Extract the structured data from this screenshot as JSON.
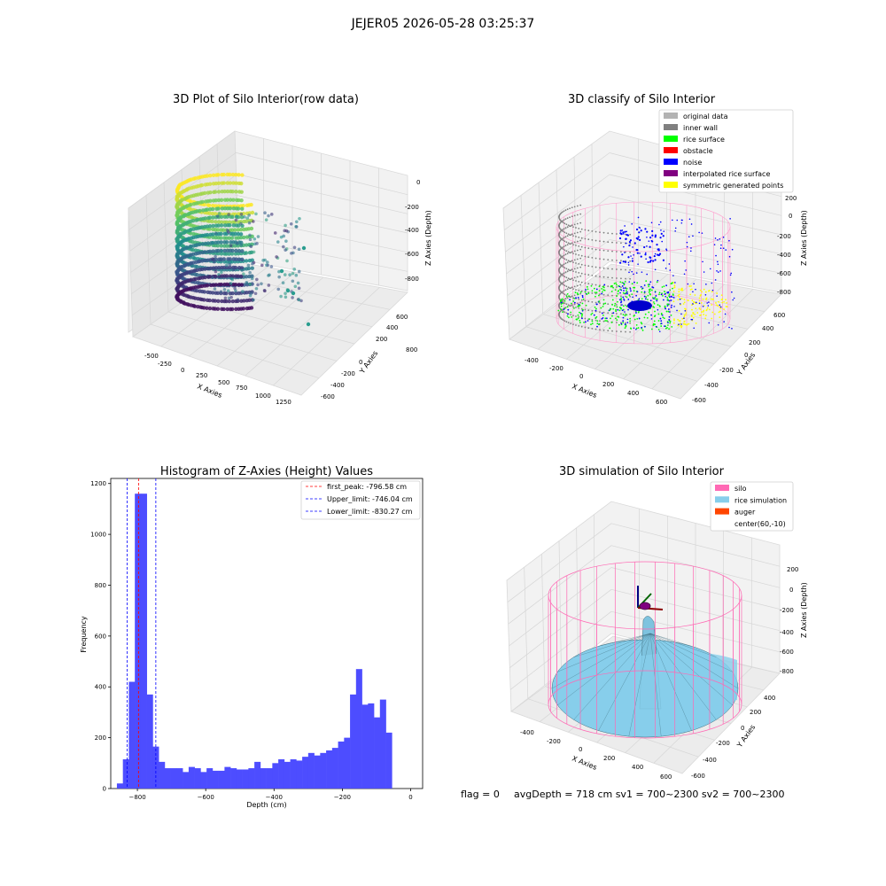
{
  "suptitle": "JEJER05 2026-05-28 03:25:37",
  "footer": {
    "flag": "flag = 0",
    "avgdepth": "avgDepth = 718 cm  sv1 = 700~2300  sv2 = 700~2300"
  },
  "chart_data": [
    {
      "type": "scatter",
      "projection": "3d",
      "title": "3D Plot of Silo Interior(row data)",
      "xlabel": "X Axies",
      "ylabel": "Y Axies",
      "zlabel": "Z Axies (Depth)",
      "x_ticks": [
        -500,
        -250,
        0,
        250,
        500,
        750,
        1000,
        1250
      ],
      "y_ticks": [
        -600,
        -400,
        -200,
        0,
        200,
        400,
        600,
        800
      ],
      "z_ticks": [
        -800,
        -600,
        -400,
        -200,
        0
      ],
      "colormap": "viridis",
      "grid": true
    },
    {
      "type": "scatter",
      "projection": "3d",
      "title": "3D classify of Silo Interior",
      "xlabel": "X Axies",
      "ylabel": "Y Axies",
      "zlabel": "Z Axies (Depth)",
      "x_ticks": [
        -400,
        -200,
        0,
        200,
        400,
        600
      ],
      "y_ticks": [
        -600,
        -400,
        -200,
        0,
        200,
        400,
        600
      ],
      "z_ticks": [
        -800,
        -600,
        -400,
        -200,
        0,
        200
      ],
      "legend_position": "top-right",
      "legend": [
        {
          "label": "original data",
          "color": "#b3b3b3"
        },
        {
          "label": "inner wall",
          "color": "#808080"
        },
        {
          "label": "rice surface",
          "color": "#00ff00"
        },
        {
          "label": "obstacle",
          "color": "#ff0000"
        },
        {
          "label": "noise",
          "color": "#0000ff"
        },
        {
          "label": "interpolated rice surface",
          "color": "#800080"
        },
        {
          "label": "symmetric generated points",
          "color": "#ffff00"
        }
      ],
      "grid": true
    },
    {
      "type": "bar",
      "subtype": "histogram",
      "title": "Histogram of Z-Axies (Height) Values",
      "xlabel": "Depth (cm)",
      "ylabel": "Frequency",
      "xlim": [
        -878,
        35
      ],
      "ylim": [
        0,
        1220
      ],
      "x_ticks": [
        -800,
        -600,
        -400,
        -200,
        0
      ],
      "y_ticks": [
        0,
        200,
        400,
        600,
        800,
        1000,
        1200
      ],
      "bar_color": "#4d4dff",
      "bin_width": 17.5,
      "bins_start": -860,
      "values": [
        20,
        115,
        420,
        1160,
        1160,
        370,
        165,
        105,
        80,
        80,
        80,
        65,
        85,
        80,
        65,
        80,
        70,
        70,
        85,
        80,
        75,
        75,
        80,
        105,
        80,
        80,
        100,
        115,
        105,
        115,
        110,
        125,
        140,
        130,
        140,
        150,
        160,
        185,
        200,
        370,
        470,
        330,
        335,
        280,
        350,
        220
      ],
      "lines": [
        {
          "x": -796.58,
          "color": "#ff0000",
          "label": "first_peak: -796.58 cm"
        },
        {
          "x": -746.04,
          "color": "#0000ff",
          "label": "Upper_limit: -746.04 cm"
        },
        {
          "x": -830.27,
          "color": "#0000ff",
          "label": "Lower_limit: -830.27 cm"
        }
      ],
      "legend_position": "top-right",
      "grid": false
    },
    {
      "type": "area",
      "projection": "3d",
      "title": "3D simulation of Silo Interior",
      "xlabel": "X Axies",
      "ylabel": "Y Axies",
      "zlabel": "Z Axies (Depth)",
      "x_ticks": [
        -400,
        -200,
        0,
        200,
        400,
        600
      ],
      "y_ticks": [
        -600,
        -400,
        -200,
        0,
        200,
        400
      ],
      "z_ticks": [
        -800,
        -600,
        -400,
        -200,
        0,
        200
      ],
      "legend_position": "top-right",
      "legend": [
        {
          "label": "silo",
          "color": "#ff69b4"
        },
        {
          "label": "rice simulation",
          "color": "#87ceeb"
        },
        {
          "label": "auger",
          "color": "#ff4500"
        },
        {
          "label": "center(60,-10)",
          "color": ""
        }
      ],
      "grid": true
    }
  ]
}
